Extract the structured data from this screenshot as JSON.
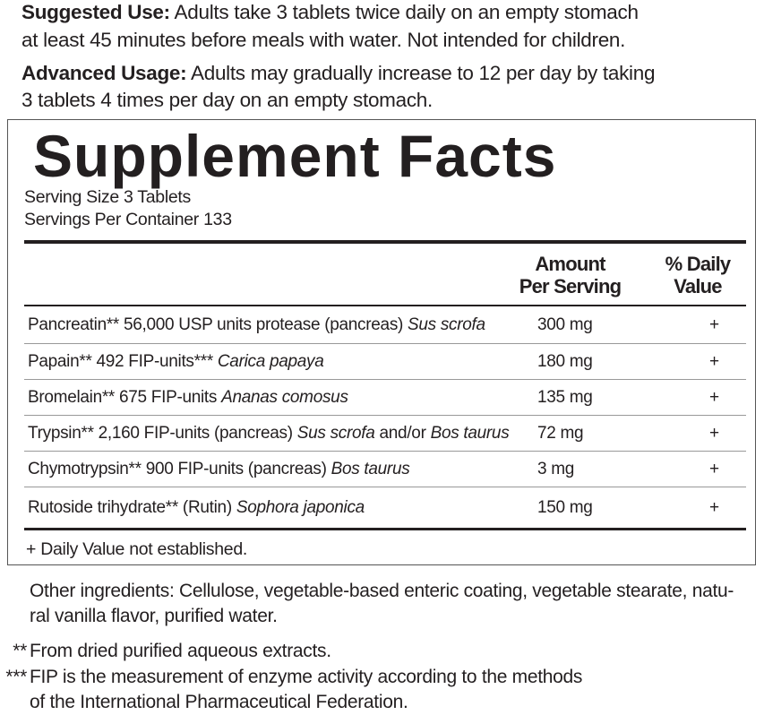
{
  "suggested_use": {
    "label": "Suggested Use:",
    "line1": " Adults take 3 tablets twice daily on an empty stomach",
    "line2": "at least 45 minutes before meals with water. Not intended for children."
  },
  "advanced_usage": {
    "label": "Advanced Usage:",
    "line1": " Adults may gradually increase to 12 per day by taking",
    "line2": "3 tablets 4 times per day on an empty stomach."
  },
  "facts": {
    "title": "Supplement Facts",
    "serving_size": "Serving Size 3 Tablets",
    "servings_per_container": "Servings Per Container 133",
    "col_amount": [
      "Amount",
      "Per Serving"
    ],
    "col_dv": [
      "% Daily",
      "Value"
    ],
    "rows": [
      {
        "name": "Pancreatin** 56,000 USP units protease (pancreas) ",
        "latin": "Sus scrofa",
        "rest": "",
        "latin2": "",
        "amount": "300 mg",
        "dv": "+"
      },
      {
        "name": "Papain** 492 FIP-units*** ",
        "latin": "Carica papaya",
        "rest": "",
        "latin2": "",
        "amount": "180 mg",
        "dv": "+"
      },
      {
        "name": "Bromelain** 675 FIP-units ",
        "latin": "Ananas comosus",
        "rest": "",
        "latin2": "",
        "amount": "135 mg",
        "dv": "+"
      },
      {
        "name": "Trypsin** 2,160 FIP-units (pancreas) ",
        "latin": "Sus scrofa",
        "rest": " and/or ",
        "latin2": "Bos taurus",
        "amount": "72 mg",
        "dv": "+"
      },
      {
        "name": "Chymotrypsin** 900 FIP-units (pancreas) ",
        "latin": "Bos taurus",
        "rest": "",
        "latin2": "",
        "amount": "3 mg",
        "dv": "+"
      },
      {
        "name": "Rutoside trihydrate** (Rutin) ",
        "latin": "Sophora japonica",
        "rest": "",
        "latin2": "",
        "amount": "150 mg",
        "dv": "+"
      }
    ],
    "footnote": "+ Daily Value not established."
  },
  "other_ingredients": {
    "line1": "Other ingredients: Cellulose, vegetable-based enteric coating, vegetable stearate, natu-",
    "line2": "ral vanilla flavor, purified water."
  },
  "notes": {
    "n1_mark": "**",
    "n1": "From dried purified aqueous extracts.",
    "n2_mark": "***",
    "n2_line1": "FIP is the measurement of enzyme activity according to the methods",
    "n2_line2": "of the International Pharmaceutical Federation."
  }
}
